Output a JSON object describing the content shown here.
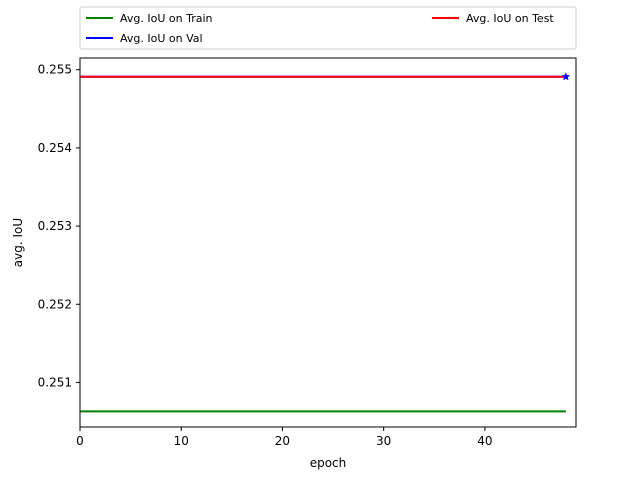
{
  "chart_data": {
    "type": "line",
    "xlabel": "epoch",
    "ylabel": "avg. IoU",
    "xlim": [
      0,
      49
    ],
    "ylim": [
      0.25043,
      0.25515
    ],
    "x_ticks": [
      0,
      10,
      20,
      30,
      40
    ],
    "x_tick_labels": [
      "0",
      "10",
      "20",
      "30",
      "40"
    ],
    "y_ticks": [
      0.251,
      0.252,
      0.253,
      0.254,
      0.255
    ],
    "y_tick_labels": [
      "0.251",
      "0.252",
      "0.253",
      "0.254",
      "0.255"
    ],
    "grid": false,
    "legend_placement": "top, above plot",
    "series": [
      {
        "name": "Avg. IoU on Train",
        "color": "#008000",
        "x": [
          0,
          48
        ],
        "y": [
          0.25063,
          0.25063
        ]
      },
      {
        "name": "Avg. IoU on Val",
        "color": "#0000ff",
        "x": [
          0,
          48
        ],
        "y": [
          0.25491,
          0.25491
        ]
      },
      {
        "name": "Avg. IoU on Test",
        "color": "#ff0000",
        "x": [
          0,
          48
        ],
        "y": [
          0.25491,
          0.25491
        ]
      }
    ],
    "markers": [
      {
        "x": 48,
        "y": 0.25491,
        "shape": "star",
        "color": "#0000ff"
      }
    ]
  }
}
